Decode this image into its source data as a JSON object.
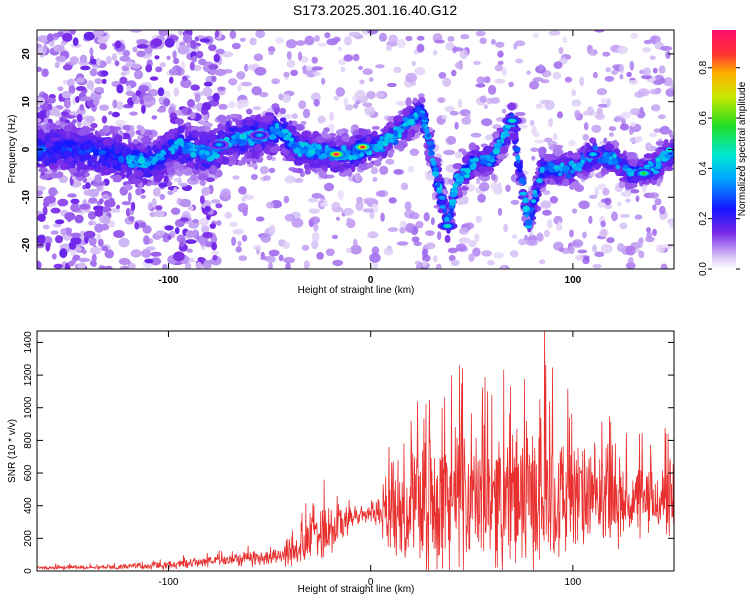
{
  "title": "S173.2025.301.16.40.G12",
  "colors": {
    "line": "#e8302f",
    "axis": "#000000",
    "background": "#ffffff"
  },
  "chart_data": [
    {
      "type": "heatmap",
      "name": "spectrogram",
      "xlabel": "Height of straight line (km)",
      "ylabel": "Frequency (Hz)",
      "xlim": [
        -165,
        150
      ],
      "ylim": [
        -25,
        25
      ],
      "xticks": [
        -100,
        0,
        100
      ],
      "yticks": [
        -20,
        -10,
        0,
        10,
        20
      ],
      "ytick_labels": [
        "-20",
        "-10",
        "0",
        "10",
        "20"
      ],
      "xtick_labels": [
        "-100",
        "0",
        "100"
      ],
      "colorbar": {
        "label": "Normalized spectral amplitude",
        "range": [
          0,
          0.95
        ],
        "ticks": [
          "0.0",
          "0.2",
          "0.4",
          "0.6",
          "0.8"
        ],
        "tick_values": [
          0,
          0.2,
          0.4,
          0.6,
          0.8
        ]
      },
      "ridge": [
        {
          "x": -150,
          "y": 0
        },
        {
          "x": -130,
          "y": -1
        },
        {
          "x": -110,
          "y": -3
        },
        {
          "x": -95,
          "y": 1
        },
        {
          "x": -80,
          "y": -1
        },
        {
          "x": -70,
          "y": 2
        },
        {
          "x": -55,
          "y": 3
        },
        {
          "x": -45,
          "y": 4
        },
        {
          "x": -35,
          "y": 0
        },
        {
          "x": -20,
          "y": -1
        },
        {
          "x": -10,
          "y": -1
        },
        {
          "x": -5,
          "y": 0
        },
        {
          "x": 5,
          "y": 1
        },
        {
          "x": 15,
          "y": 4
        },
        {
          "x": 25,
          "y": 8
        },
        {
          "x": 30,
          "y": 0
        },
        {
          "x": 38,
          "y": -16
        },
        {
          "x": 42,
          "y": -7
        },
        {
          "x": 50,
          "y": -3
        },
        {
          "x": 60,
          "y": -2
        },
        {
          "x": 70,
          "y": 6
        },
        {
          "x": 78,
          "y": -15
        },
        {
          "x": 85,
          "y": -4
        },
        {
          "x": 100,
          "y": -4
        },
        {
          "x": 110,
          "y": -1
        },
        {
          "x": 120,
          "y": -2
        },
        {
          "x": 130,
          "y": -5
        },
        {
          "x": 140,
          "y": -4
        },
        {
          "x": 147,
          "y": -1
        }
      ],
      "peaks": [
        {
          "x": -17,
          "y": -1,
          "amp": 0.95
        },
        {
          "x": -4,
          "y": 0.5,
          "amp": 0.9
        },
        {
          "x": 38,
          "y": -16,
          "amp": 0.5
        },
        {
          "x": 70,
          "y": 6,
          "amp": 0.5
        },
        {
          "x": 135,
          "y": -5,
          "amp": 0.6
        },
        {
          "x": 110,
          "y": -1,
          "amp": 0.45
        },
        {
          "x": -55,
          "y": 3,
          "amp": 0.4
        },
        {
          "x": -75,
          "y": 1,
          "amp": 0.4
        }
      ]
    },
    {
      "type": "line",
      "name": "snr",
      "xlabel": "Height of straight line (km)",
      "ylabel": "SNR (10 * v/v)",
      "xlim": [
        -165,
        150
      ],
      "ylim": [
        0,
        1470
      ],
      "xticks": [
        -100,
        0,
        100
      ],
      "xtick_labels": [
        "-100",
        "0",
        "100"
      ],
      "yticks": [
        0,
        200,
        400,
        600,
        800,
        1000,
        1200,
        1400
      ],
      "ytick_labels": [
        "0",
        "200",
        "400",
        "600",
        "800",
        "1000",
        "1200",
        "1400"
      ],
      "envelope": {
        "x": [
          -165,
          -130,
          -100,
          -80,
          -60,
          -45,
          -35,
          -30,
          -25,
          -20,
          -15,
          -10,
          -5,
          0,
          10,
          20,
          30,
          40,
          50,
          60,
          70,
          80,
          85,
          90,
          100,
          110,
          120,
          130,
          140,
          150
        ],
        "base": [
          20,
          25,
          35,
          60,
          80,
          90,
          120,
          200,
          280,
          250,
          300,
          320,
          340,
          350,
          380,
          400,
          420,
          430,
          440,
          450,
          450,
          450,
          460,
          460,
          450,
          440,
          430,
          420,
          430,
          440
        ],
        "spread": [
          15,
          15,
          30,
          40,
          60,
          60,
          120,
          200,
          260,
          200,
          180,
          120,
          60,
          60,
          300,
          420,
          500,
          560,
          480,
          500,
          520,
          560,
          560,
          500,
          420,
          380,
          320,
          280,
          250,
          320
        ]
      },
      "peaks": [
        {
          "x": 86,
          "y": 1470
        },
        {
          "x": 44,
          "y": 1260
        },
        {
          "x": 45,
          "y": 1150
        },
        {
          "x": 40,
          "y": 1200
        },
        {
          "x": 60,
          "y": 1080
        },
        {
          "x": 20,
          "y": 920
        },
        {
          "x": -23,
          "y": 560
        },
        {
          "x": 147,
          "y": 840
        }
      ]
    }
  ]
}
